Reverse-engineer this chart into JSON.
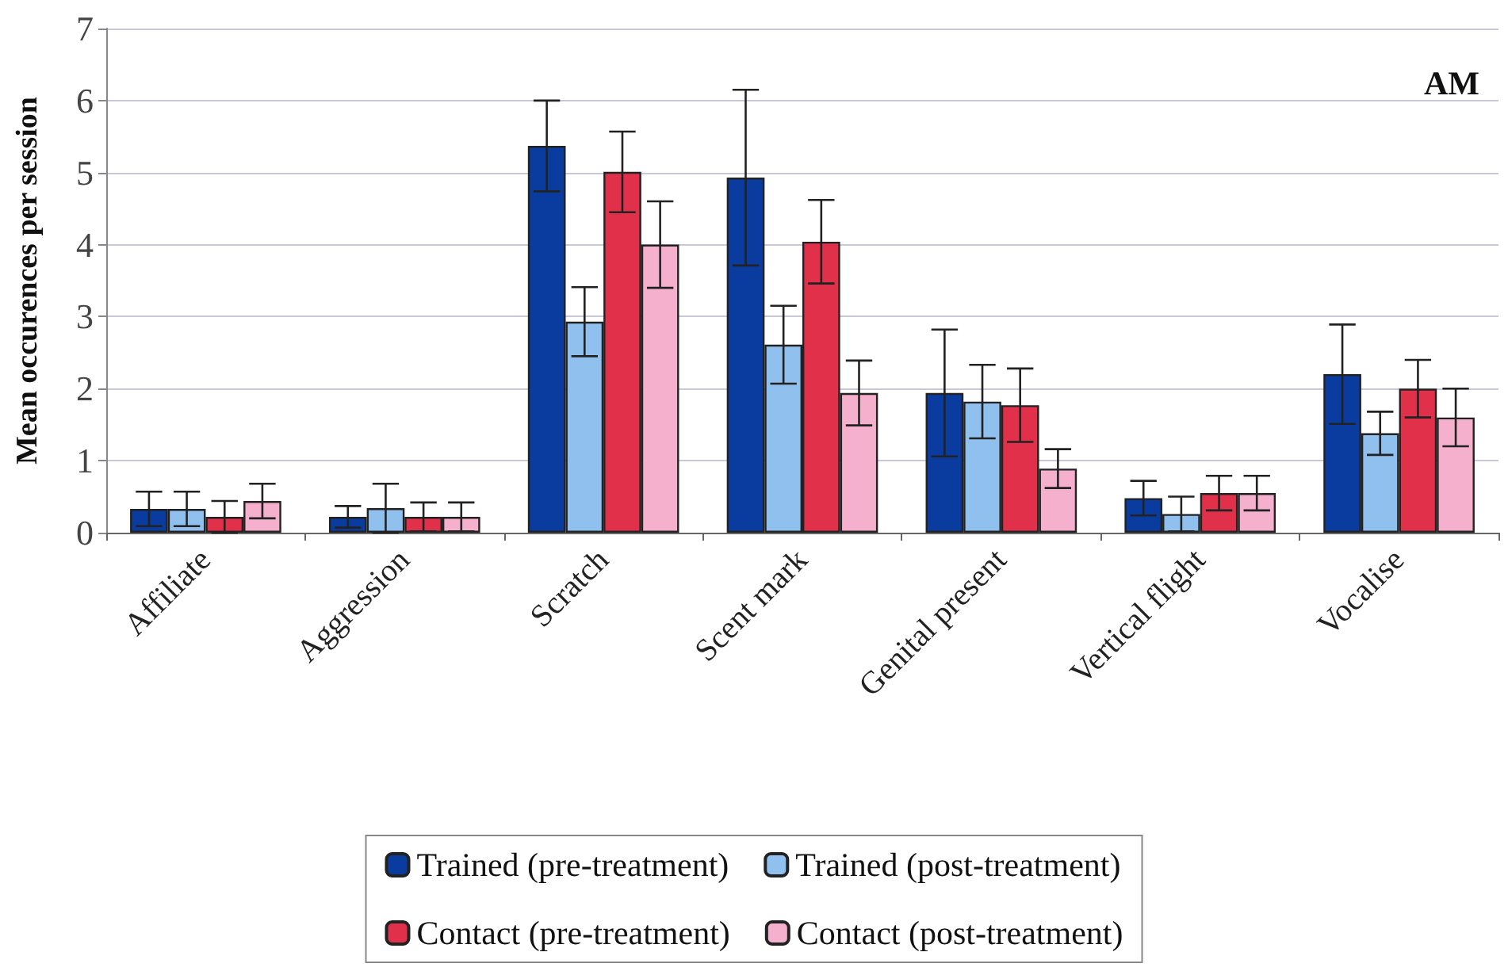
{
  "chart_data": {
    "type": "bar",
    "ylabel": "Mean occurences per session",
    "annotations": [
      "AM"
    ],
    "categories": [
      "Affiliate",
      "Aggression",
      "Scratch",
      "Scent mark",
      "Genital present",
      "Vertical flight",
      "Vocalise"
    ],
    "series": [
      {
        "name": "Trained (pre-treatment)",
        "color": "#0a3ca0",
        "values": [
          0.33,
          0.22,
          5.37,
          4.93,
          1.94,
          0.48,
          2.2
        ],
        "errors": [
          0.24,
          0.15,
          0.63,
          1.22,
          0.88,
          0.24,
          0.69
        ]
      },
      {
        "name": "Trained (post-treatment)",
        "color": "#8fc0ee",
        "values": [
          0.33,
          0.34,
          2.93,
          2.61,
          1.82,
          0.26,
          1.38
        ],
        "errors": [
          0.24,
          0.34,
          0.48,
          0.54,
          0.51,
          0.24,
          0.3
        ]
      },
      {
        "name": "Contact (pre-treatment)",
        "color": "#e0304a",
        "values": [
          0.22,
          0.22,
          5.01,
          4.04,
          1.77,
          0.55,
          2.0
        ],
        "errors": [
          0.22,
          0.2,
          0.56,
          0.58,
          0.51,
          0.24,
          0.4
        ]
      },
      {
        "name": "Contact (post-treatment)",
        "color": "#f4b0cc",
        "values": [
          0.44,
          0.22,
          4.0,
          1.94,
          0.89,
          0.55,
          1.6
        ],
        "errors": [
          0.24,
          0.2,
          0.6,
          0.45,
          0.27,
          0.24,
          0.4
        ]
      }
    ],
    "ylim": [
      0,
      7
    ],
    "yticks": [
      0,
      1,
      2,
      3,
      4,
      5,
      6,
      7
    ],
    "grid": "y",
    "legend": "bottom"
  }
}
